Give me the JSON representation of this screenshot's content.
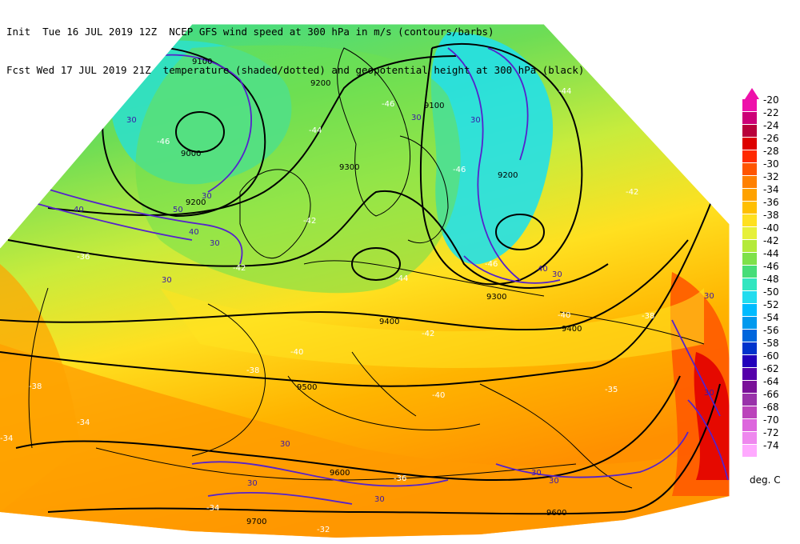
{
  "header": {
    "line1": "Init  Tue 16 JUL 2019 12Z  NCEP GFS wind speed at 300 hPa in m/s (contours/barbs)",
    "line2": "Fcst Wed 17 JUL 2019 21Z  temperature (shaded/dotted) and geopotential height at 300 hPa (black)"
  },
  "legend": {
    "unit": "deg. C",
    "items": [
      {
        "label": "-20",
        "color": "#ee11aa"
      },
      {
        "label": "-22",
        "color": "#cc0077"
      },
      {
        "label": "-24",
        "color": "#b8003a"
      },
      {
        "label": "-26",
        "color": "#dd0000"
      },
      {
        "label": "-28",
        "color": "#ff2a00"
      },
      {
        "label": "-30",
        "color": "#ff5500"
      },
      {
        "label": "-32",
        "color": "#ff8000"
      },
      {
        "label": "-34",
        "color": "#ffa200"
      },
      {
        "label": "-36",
        "color": "#ffbf00"
      },
      {
        "label": "-38",
        "color": "#ffe020"
      },
      {
        "label": "-40",
        "color": "#e6f03a"
      },
      {
        "label": "-42",
        "color": "#b4ea3a"
      },
      {
        "label": "-44",
        "color": "#7ee14a"
      },
      {
        "label": "-46",
        "color": "#46dd78"
      },
      {
        "label": "-48",
        "color": "#33e6c0"
      },
      {
        "label": "-50",
        "color": "#22dcee"
      },
      {
        "label": "-52",
        "color": "#00bbff"
      },
      {
        "label": "-54",
        "color": "#0099ee"
      },
      {
        "label": "-56",
        "color": "#0066dd"
      },
      {
        "label": "-58",
        "color": "#0033cc"
      },
      {
        "label": "-60",
        "color": "#2200bb"
      },
      {
        "label": "-62",
        "color": "#5500aa"
      },
      {
        "label": "-64",
        "color": "#7a1199"
      },
      {
        "label": "-66",
        "color": "#9933aa"
      },
      {
        "label": "-68",
        "color": "#bb44bb"
      },
      {
        "label": "-70",
        "color": "#dd66dd"
      },
      {
        "label": "-72",
        "color": "#ee88ee"
      },
      {
        "label": "-74",
        "color": "#ffaaff"
      }
    ]
  },
  "map": {
    "height_labels": [
      "9100",
      "9200",
      "9000",
      "9100",
      "9200",
      "9300",
      "9200",
      "9300",
      "9400",
      "9400",
      "9500",
      "9600",
      "9600",
      "9700"
    ],
    "wind_labels": [
      "30",
      "30",
      "40",
      "50",
      "30",
      "40",
      "30",
      "30",
      "30",
      "40",
      "30",
      "30",
      "30",
      "30",
      "30",
      "30",
      "30",
      "30"
    ],
    "temp_labels": [
      "-46",
      "-46",
      "-44",
      "-44",
      "-42",
      "-42",
      "-36",
      "-42",
      "-40",
      "-40",
      "-42",
      "-38",
      "-38",
      "-38",
      "-34",
      "-34",
      "-40",
      "-35",
      "-36",
      "-32",
      "-34",
      "-46",
      "-44",
      "-46"
    ]
  }
}
